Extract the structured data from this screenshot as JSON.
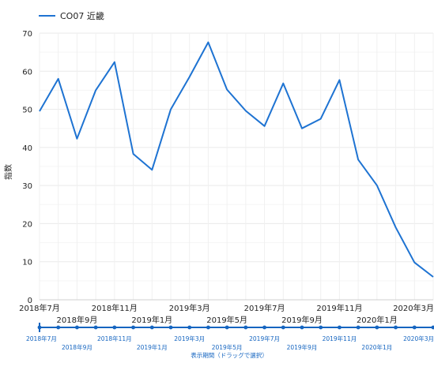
{
  "chart_data": {
    "type": "line",
    "ylabel": "指数",
    "ylim": [
      0,
      70
    ],
    "yticks": [
      "0",
      "10",
      "20",
      "30",
      "40",
      "50",
      "60",
      "70"
    ],
    "grid": true,
    "legend_position": "top-left",
    "series": [
      {
        "name": "CO07 近畿",
        "color": "#1e73d2",
        "values": [
          49.5,
          58.0,
          42.3,
          55.0,
          62.4,
          38.3,
          34.1,
          50.0,
          58.5,
          67.6,
          55.2,
          49.6,
          45.6,
          56.8,
          45.0,
          47.5,
          57.7,
          36.8,
          30.0,
          19.0,
          9.8,
          6.0
        ]
      }
    ],
    "x": [
      "2018-07",
      "2018-08",
      "2018-09",
      "2018-10",
      "2018-11",
      "2018-12",
      "2019-01",
      "2019-02",
      "2019-03",
      "2019-04",
      "2019-05",
      "2019-06",
      "2019-07",
      "2019-08",
      "2019-09",
      "2019-10",
      "2019-11",
      "2019-12",
      "2020-01",
      "2020-02",
      "2020-03",
      "2020-04"
    ],
    "xticks_top": [
      "2018年7月",
      "2018年11月",
      "2019年3月",
      "2019年7月",
      "2019年11月",
      "2020年3月"
    ],
    "xticks_bottom": [
      "2018年9月",
      "2019年1月",
      "2019年5月",
      "2019年9月",
      "2020年1月"
    ]
  },
  "navigator": {
    "xticks_top": [
      "2018年7月",
      "2018年11月",
      "2019年3月",
      "2019年7月",
      "2019年11月",
      "2020年3月"
    ],
    "xticks_bottom": [
      "2018年9月",
      "2019年1月",
      "2019年5月",
      "2019年9月",
      "2020年1月"
    ],
    "caption": "表示期間（ドラッグで選択）",
    "color": "#1565c0"
  }
}
